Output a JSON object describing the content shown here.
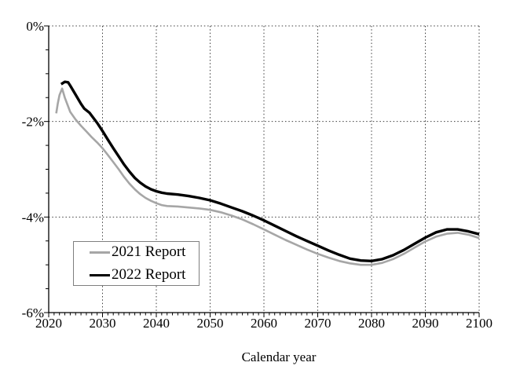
{
  "page": {
    "background": "#ffffff"
  },
  "chart_data": {
    "type": "line",
    "title": "",
    "xlabel": "Calendar year",
    "ylabel": "",
    "xlim": [
      2020,
      2100
    ],
    "ylim": [
      -6,
      0
    ],
    "grid": "dotted",
    "x_minor_step": 1,
    "y_minor_step": 0.5,
    "grid_x": [
      2030,
      2040,
      2050,
      2060,
      2070,
      2080,
      2090,
      2100
    ],
    "grid_y": [
      0,
      -2,
      -4
    ],
    "x_ticks": [
      {
        "v": 2020,
        "label": "2020"
      },
      {
        "v": 2030,
        "label": "2030"
      },
      {
        "v": 2040,
        "label": "2040"
      },
      {
        "v": 2050,
        "label": "2050"
      },
      {
        "v": 2060,
        "label": "2060"
      },
      {
        "v": 2070,
        "label": "2070"
      },
      {
        "v": 2080,
        "label": "2080"
      },
      {
        "v": 2090,
        "label": "2090"
      },
      {
        "v": 2100,
        "label": "2100"
      }
    ],
    "y_ticks": [
      {
        "v": 0,
        "label": "0%"
      },
      {
        "v": -2,
        "label": "-2%"
      },
      {
        "v": -4,
        "label": "-4%"
      },
      {
        "v": -6,
        "label": "-6%"
      }
    ],
    "legend": {
      "position": "bottom-left-inside"
    },
    "series": [
      {
        "name": "2021 Report",
        "color": "#a6a6a6",
        "width": 2.6,
        "points": [
          [
            2021.4,
            -1.83
          ],
          [
            2021.7,
            -1.62
          ],
          [
            2022.0,
            -1.45
          ],
          [
            2022.5,
            -1.31
          ],
          [
            2023,
            -1.5
          ],
          [
            2024,
            -1.8
          ],
          [
            2025,
            -1.96
          ],
          [
            2026,
            -2.09
          ],
          [
            2027,
            -2.21
          ],
          [
            2028,
            -2.33
          ],
          [
            2029,
            -2.44
          ],
          [
            2030,
            -2.56
          ],
          [
            2031,
            -2.7
          ],
          [
            2032,
            -2.85
          ],
          [
            2033,
            -3.0
          ],
          [
            2034,
            -3.16
          ],
          [
            2035,
            -3.3
          ],
          [
            2036,
            -3.42
          ],
          [
            2037,
            -3.52
          ],
          [
            2038,
            -3.6
          ],
          [
            2039,
            -3.66
          ],
          [
            2040,
            -3.71
          ],
          [
            2041,
            -3.75
          ],
          [
            2042,
            -3.77
          ],
          [
            2044,
            -3.78
          ],
          [
            2046,
            -3.8
          ],
          [
            2048,
            -3.82
          ],
          [
            2050,
            -3.85
          ],
          [
            2052,
            -3.9
          ],
          [
            2054,
            -3.97
          ],
          [
            2056,
            -4.05
          ],
          [
            2058,
            -4.15
          ],
          [
            2060,
            -4.26
          ],
          [
            2062,
            -4.37
          ],
          [
            2064,
            -4.48
          ],
          [
            2066,
            -4.58
          ],
          [
            2068,
            -4.68
          ],
          [
            2070,
            -4.77
          ],
          [
            2072,
            -4.85
          ],
          [
            2074,
            -4.92
          ],
          [
            2076,
            -4.97
          ],
          [
            2078,
            -5.0
          ],
          [
            2080,
            -5.0
          ],
          [
            2082,
            -4.96
          ],
          [
            2084,
            -4.88
          ],
          [
            2086,
            -4.77
          ],
          [
            2088,
            -4.64
          ],
          [
            2090,
            -4.51
          ],
          [
            2092,
            -4.41
          ],
          [
            2094,
            -4.35
          ],
          [
            2096,
            -4.33
          ],
          [
            2098,
            -4.37
          ],
          [
            2100,
            -4.44
          ]
        ]
      },
      {
        "name": "2022 Report",
        "color": "#000000",
        "width": 3.4,
        "points": [
          [
            2022.3,
            -1.22
          ],
          [
            2023,
            -1.17
          ],
          [
            2023.6,
            -1.18
          ],
          [
            2024,
            -1.25
          ],
          [
            2025,
            -1.44
          ],
          [
            2026,
            -1.63
          ],
          [
            2026.6,
            -1.73
          ],
          [
            2027.6,
            -1.82
          ],
          [
            2028,
            -1.88
          ],
          [
            2029,
            -2.03
          ],
          [
            2030,
            -2.2
          ],
          [
            2031,
            -2.38
          ],
          [
            2032,
            -2.56
          ],
          [
            2033,
            -2.73
          ],
          [
            2034,
            -2.9
          ],
          [
            2035,
            -3.05
          ],
          [
            2036,
            -3.18
          ],
          [
            2037,
            -3.28
          ],
          [
            2038,
            -3.36
          ],
          [
            2039,
            -3.42
          ],
          [
            2040,
            -3.46
          ],
          [
            2041,
            -3.49
          ],
          [
            2042,
            -3.51
          ],
          [
            2044,
            -3.53
          ],
          [
            2046,
            -3.56
          ],
          [
            2048,
            -3.6
          ],
          [
            2050,
            -3.65
          ],
          [
            2052,
            -3.72
          ],
          [
            2054,
            -3.8
          ],
          [
            2056,
            -3.88
          ],
          [
            2058,
            -3.97
          ],
          [
            2060,
            -4.07
          ],
          [
            2062,
            -4.18
          ],
          [
            2064,
            -4.29
          ],
          [
            2066,
            -4.4
          ],
          [
            2068,
            -4.5
          ],
          [
            2070,
            -4.6
          ],
          [
            2072,
            -4.7
          ],
          [
            2074,
            -4.79
          ],
          [
            2076,
            -4.87
          ],
          [
            2078,
            -4.91
          ],
          [
            2080,
            -4.92
          ],
          [
            2082,
            -4.88
          ],
          [
            2084,
            -4.8
          ],
          [
            2086,
            -4.69
          ],
          [
            2088,
            -4.56
          ],
          [
            2090,
            -4.43
          ],
          [
            2092,
            -4.32
          ],
          [
            2094,
            -4.26
          ],
          [
            2096,
            -4.26
          ],
          [
            2098,
            -4.3
          ],
          [
            2100,
            -4.36
          ]
        ]
      }
    ]
  }
}
